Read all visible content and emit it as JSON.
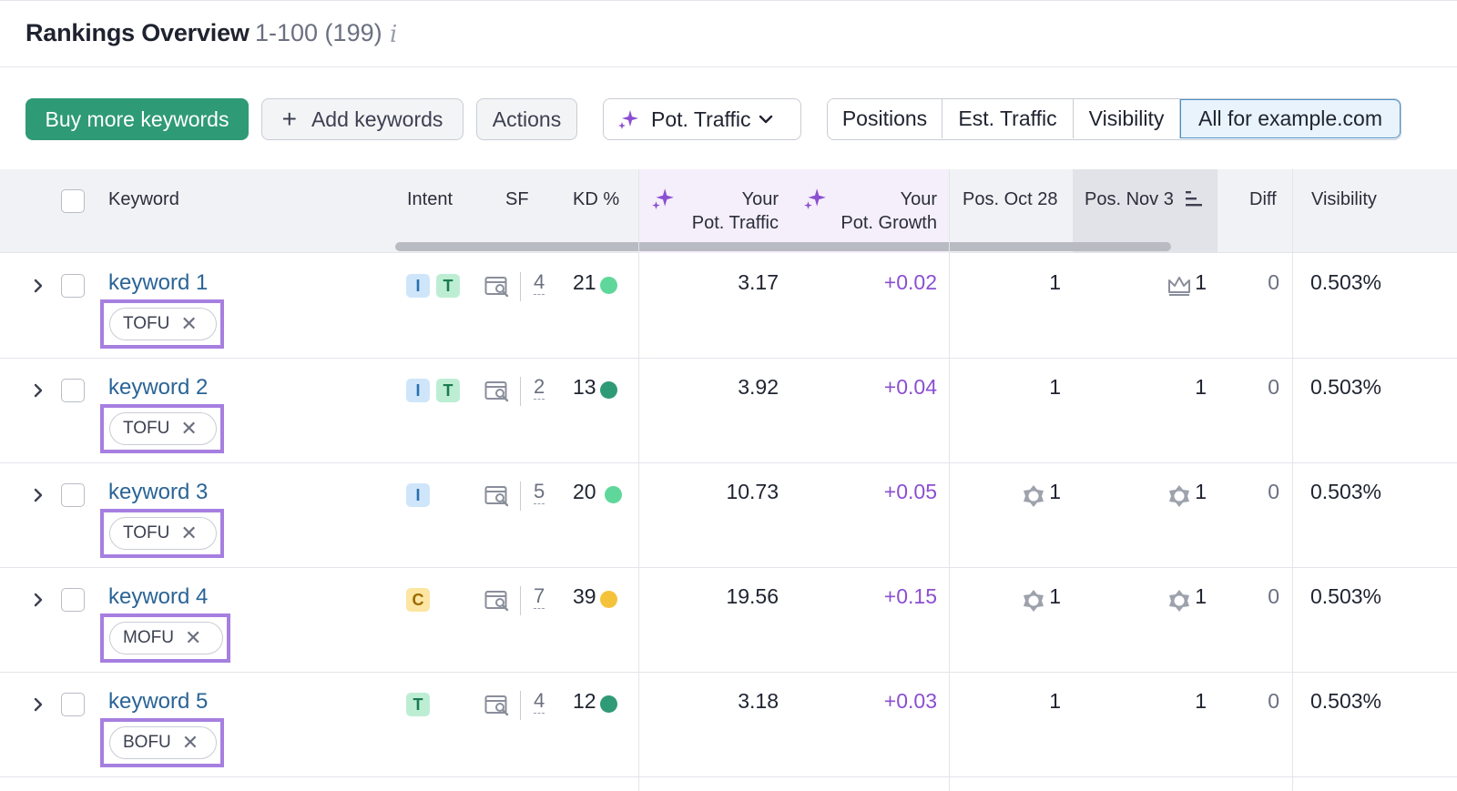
{
  "header": {
    "title": "Rankings Overview",
    "range": "1-100 (199)",
    "info_glyph": "i"
  },
  "toolbar": {
    "buy_label": "Buy more keywords",
    "add_label": "Add keywords",
    "add_plus": "+",
    "actions_label": "Actions",
    "metric_select": "Pot. Traffic",
    "segments": [
      "Positions",
      "Est. Traffic",
      "Visibility",
      "All for example.com"
    ],
    "active_segment": "All for example.com"
  },
  "columns": {
    "keyword": "Keyword",
    "intent": "Intent",
    "sf": "SF",
    "kd": "KD %",
    "pot_traffic_1": "Your",
    "pot_traffic_2": "Pot. Traffic",
    "pot_growth_1": "Your",
    "pot_growth_2": "Pot. Growth",
    "pos_prev": "Pos. Oct 28",
    "pos_curr": "Pos. Nov 3",
    "diff": "Diff",
    "visibility": "Visibility"
  },
  "colors": {
    "primary_green": "#2f9a76",
    "tag_highlight": "#a67fe0",
    "kd_light_green": "#5fd79a",
    "kd_dark_green": "#2f9a76",
    "kd_yellow": "#f5c33b",
    "growth_purple": "#8b4fd1"
  },
  "rows": [
    {
      "keyword": "keyword 1",
      "tag": "TOFU",
      "tag_remove": "✕",
      "intents": [
        "I",
        "T"
      ],
      "sf": "4",
      "kd": "21",
      "kd_level": "light-green",
      "pot_traffic": "3.17",
      "pot_growth": "+0.02",
      "pos_prev": "1",
      "pos_prev_icon": "",
      "pos_curr": "1",
      "pos_curr_icon": "crown-icon",
      "diff": "0",
      "visibility": "0.503%"
    },
    {
      "keyword": "keyword 2",
      "tag": "TOFU",
      "tag_remove": "✕",
      "intents": [
        "I",
        "T"
      ],
      "sf": "2",
      "kd": "13",
      "kd_level": "dark-green",
      "pot_traffic": "3.92",
      "pot_growth": "+0.04",
      "pos_prev": "1",
      "pos_prev_icon": "",
      "pos_curr": "1",
      "pos_curr_icon": "",
      "diff": "0",
      "visibility": "0.503%"
    },
    {
      "keyword": "keyword 3",
      "tag": "TOFU",
      "tag_remove": "✕",
      "intents": [
        "I"
      ],
      "sf": "5",
      "kd": "20",
      "kd_level": "light-green",
      "pot_traffic": "10.73",
      "pot_growth": "+0.05",
      "pos_prev": "1",
      "pos_prev_icon": "featured-snippet-icon",
      "pos_curr": "1",
      "pos_curr_icon": "featured-snippet-icon",
      "diff": "0",
      "visibility": "0.503%"
    },
    {
      "keyword": "keyword 4",
      "tag": "MOFU",
      "tag_remove": "✕",
      "intents": [
        "C"
      ],
      "sf": "7",
      "kd": "39",
      "kd_level": "yellow",
      "pot_traffic": "19.56",
      "pot_growth": "+0.15",
      "pos_prev": "1",
      "pos_prev_icon": "featured-snippet-icon",
      "pos_curr": "1",
      "pos_curr_icon": "featured-snippet-icon",
      "diff": "0",
      "visibility": "0.503%"
    },
    {
      "keyword": "keyword 5",
      "tag": "BOFU",
      "tag_remove": "✕",
      "intents": [
        "T"
      ],
      "sf": "4",
      "kd": "12",
      "kd_level": "dark-green",
      "pot_traffic": "3.18",
      "pot_growth": "+0.03",
      "pos_prev": "1",
      "pos_prev_icon": "",
      "pos_curr": "1",
      "pos_curr_icon": "",
      "diff": "0",
      "visibility": "0.503%"
    }
  ]
}
